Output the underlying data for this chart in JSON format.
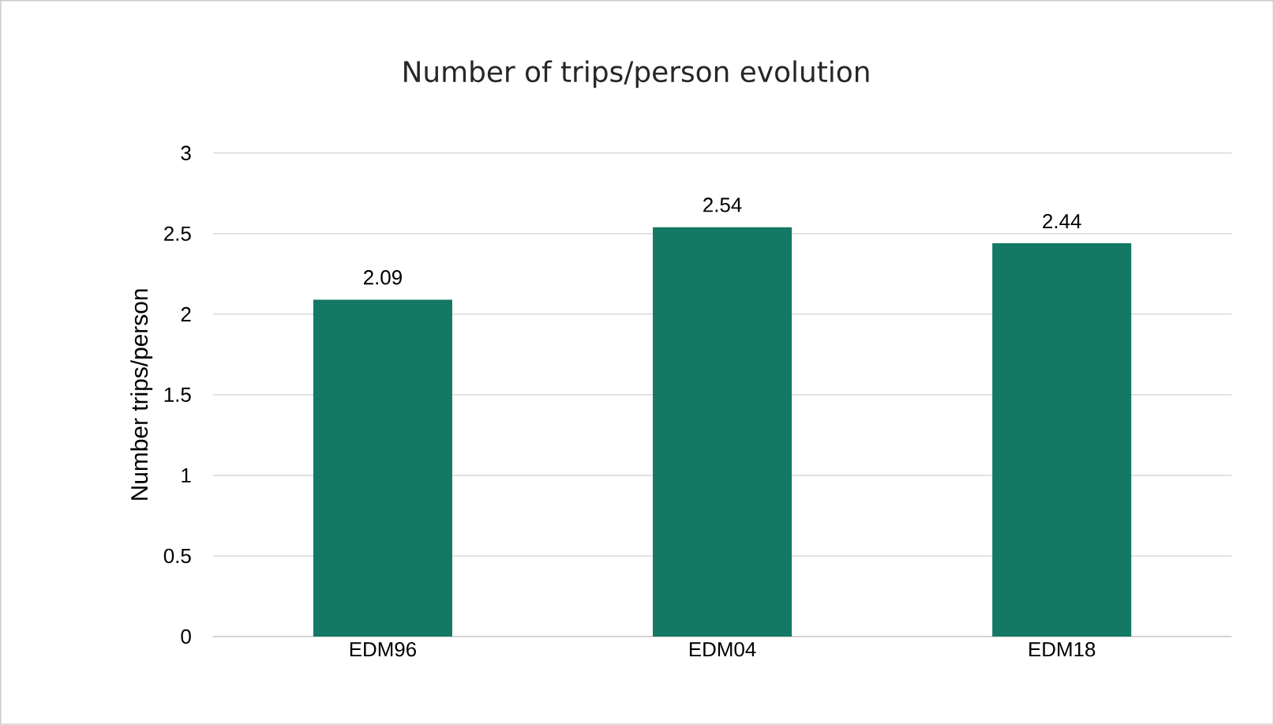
{
  "chart_data": {
    "type": "bar",
    "title": "Number of trips/person evolution",
    "ylabel": "Number trips/person",
    "categories": [
      "EDM96",
      "EDM04",
      "EDM18"
    ],
    "values": [
      2.09,
      2.54,
      2.44
    ],
    "color": "#137864",
    "ylim": [
      0,
      3
    ],
    "yticks": [
      0,
      0.5,
      1,
      1.5,
      2,
      2.5,
      3
    ],
    "grid": "y",
    "data_labels": true
  }
}
